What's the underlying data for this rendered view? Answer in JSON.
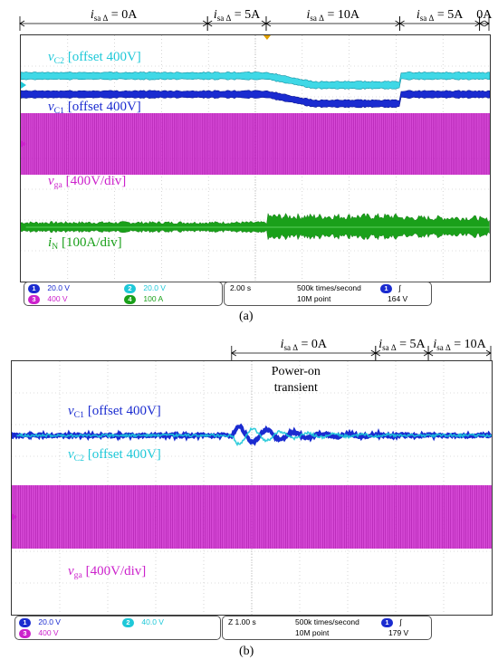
{
  "panel_a": {
    "label": "(a)",
    "segments": [
      {
        "x0": 0,
        "x1": 8.0,
        "label_main": "i",
        "label_sub": "sa Δ",
        "label_rest": " = 0A"
      },
      {
        "x0": 8.0,
        "x1": 10.5,
        "label_main": "i",
        "label_sub": "sa Δ",
        "label_rest": " = 5A"
      },
      {
        "x0": 10.5,
        "x1": 16.2,
        "label_main": "i",
        "label_sub": "sa Δ",
        "label_rest": " = 10A"
      },
      {
        "x0": 16.2,
        "x1": 19.6,
        "label_main": "i",
        "label_sub": "sa Δ",
        "label_rest": " = 5A"
      },
      {
        "x0": 19.6,
        "x1": 20,
        "label_main": "",
        "label_sub": "",
        "label_rest": "0A"
      }
    ],
    "traces": {
      "vc2": {
        "main": "v",
        "sub": "C2",
        "rest": " [offset 400V]",
        "color": "#1ec8d8"
      },
      "vc1": {
        "main": "v",
        "sub": "C1",
        "rest": " [offset 400V]",
        "color": "#1a2bd0"
      },
      "vga": {
        "main": "v",
        "sub": "ga",
        "rest": " [400V/div]",
        "color": "#cc22cc"
      },
      "iN": {
        "main": "i",
        "sub": "N",
        "rest": " [100A/div]",
        "color": "#1aa01a"
      }
    },
    "status": {
      "ch1": {
        "num": "1",
        "value": "20.0 V",
        "color": "#1a2bd0"
      },
      "ch2": {
        "num": "2",
        "value": "20.0 V",
        "color": "#1ec8d8"
      },
      "ch3": {
        "num": "3",
        "value": "400 V",
        "color": "#cc22cc"
      },
      "ch4": {
        "num": "4",
        "value": "100 A",
        "color": "#1aa01a"
      },
      "timebase": "2.00 s",
      "rate": "500k times/second",
      "points": "10M  point",
      "trigger_ch": "1",
      "trigger_symbol": "∫",
      "trigger_level": "164 V"
    }
  },
  "panel_b": {
    "label": "(b)",
    "segments": [
      {
        "x0": 4.6,
        "x1": 7.6,
        "label_main": "i",
        "label_sub": "sa Δ",
        "label_rest": " = 0A"
      },
      {
        "x0": 7.6,
        "x1": 8.7,
        "label_main": "i",
        "label_sub": "sa Δ",
        "label_rest": " = 5A"
      },
      {
        "x0": 8.7,
        "x1": 10,
        "label_main": "i",
        "label_sub": "sa Δ",
        "label_rest": " = 10A"
      }
    ],
    "annotation": [
      "Power-on",
      "transient"
    ],
    "traces": {
      "vc1": {
        "main": "v",
        "sub": "C1",
        "rest": " [offset 400V]",
        "color": "#1a2bd0"
      },
      "vc2": {
        "main": "v",
        "sub": "C2",
        "rest": " [offset 400V]",
        "color": "#1ec8d8"
      },
      "vga": {
        "main": "v",
        "sub": "ga",
        "rest": " [400V/div]",
        "color": "#cc22cc"
      }
    },
    "status": {
      "ch1": {
        "num": "1",
        "value": "20.0 V",
        "color": "#1a2bd0"
      },
      "ch2": {
        "num": "2",
        "value": "40.0 V",
        "color": "#1ec8d8"
      },
      "ch3": {
        "num": "3",
        "value": "400 V",
        "color": "#cc22cc"
      },
      "timebase": "Z 1.00 s",
      "rate": "500k times/second",
      "points": "10M  point",
      "trigger_ch": "1",
      "trigger_symbol": "∫",
      "trigger_level": "179 V"
    }
  },
  "chart_data": [
    {
      "type": "line",
      "panel": "a",
      "x_unit": "s",
      "x_divisions": 10,
      "time_per_div": "2.00 s",
      "xlim": [
        0,
        20
      ],
      "series": [
        {
          "name": "vC2 [offset 400V]",
          "segments_level_div": [
            0.3,
            0.3,
            0.0,
            0.3,
            0.3
          ]
        },
        {
          "name": "vC1 [offset 400V]",
          "segments_level_div": [
            -0.3,
            -0.3,
            -0.6,
            -0.3,
            -0.3
          ]
        },
        {
          "name": "vga [400V/div]",
          "amplitude_div": 1.0
        },
        {
          "name": "iN [100A/div]",
          "amplitude_div": [
            0.15,
            0.15,
            0.35,
            0.3,
            0.25
          ]
        }
      ],
      "grid": true
    },
    {
      "type": "line",
      "panel": "b",
      "x_unit": "s",
      "x_divisions": 10,
      "time_per_div": "1.00 s",
      "xlim": [
        0,
        10
      ],
      "series": [
        {
          "name": "vC1 [offset 400V]",
          "transient_start_s": 4.6
        },
        {
          "name": "vC2 [offset 400V]",
          "transient_start_s": 4.6
        },
        {
          "name": "vga [400V/div]",
          "amplitude_div": 1.0
        }
      ],
      "grid": true
    }
  ]
}
